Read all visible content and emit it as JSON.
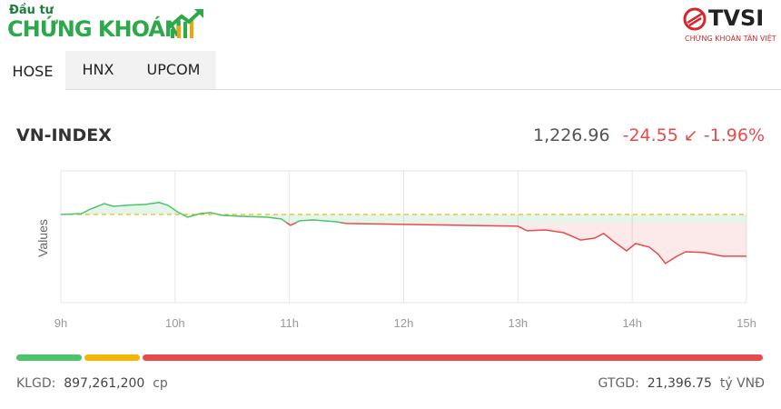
{
  "header": {
    "logo_top": "Đầu tư",
    "logo_main": "CHỨNG KHOÁN",
    "broker": "TVSI",
    "broker_tagline": "CHỨNG KHOÁN TÂN VIỆT"
  },
  "tabs": [
    "HOSE",
    "HNX",
    "UPCOM"
  ],
  "index": {
    "name": "VN-INDEX",
    "value": "1,226.96",
    "change": "-24.55",
    "change_pct": "-1.96%"
  },
  "chart_data": {
    "type": "line",
    "y_label": "Values",
    "x": [
      9.0,
      9.18,
      9.26,
      9.38,
      9.46,
      9.58,
      9.74,
      9.86,
      9.94,
      10.02,
      10.11,
      10.22,
      10.31,
      10.41,
      10.57,
      10.81,
      10.93,
      11.01,
      11.09,
      11.21,
      11.41,
      11.5,
      13.0,
      13.08,
      13.24,
      13.4,
      13.55,
      13.67,
      13.75,
      13.83,
      13.95,
      14.03,
      14.15,
      14.23,
      14.29,
      14.39,
      14.47,
      14.63,
      14.79,
      15.0
    ],
    "values": [
      1251.5,
      1252.0,
      1254.7,
      1257.9,
      1256.3,
      1256.9,
      1257.4,
      1258.5,
      1256.8,
      1253.1,
      1249.9,
      1252.0,
      1252.6,
      1251.0,
      1250.4,
      1249.9,
      1248.8,
      1245.1,
      1247.8,
      1248.3,
      1247.2,
      1246.2,
      1244.6,
      1241.9,
      1242.4,
      1240.8,
      1236.5,
      1237.6,
      1240.3,
      1236.0,
      1230.1,
      1234.4,
      1232.3,
      1228.0,
      1222.7,
      1226.9,
      1229.6,
      1229.1,
      1227.0,
      1226.96
    ],
    "reference": 1251.51,
    "up_color": "#4cc46b",
    "down_color": "#e84a4a",
    "reference_color": "#f0b000",
    "xlim": [
      9,
      15
    ],
    "ylim": [
      1199.7,
      1277.1
    ],
    "xticks": [
      {
        "value": 9,
        "label": "9h"
      },
      {
        "value": 10,
        "label": "10h"
      },
      {
        "value": 11,
        "label": "11h"
      },
      {
        "value": 12,
        "label": "12h"
      },
      {
        "value": 13,
        "label": "13h"
      },
      {
        "value": 14,
        "label": "14h"
      },
      {
        "value": 15,
        "label": "15h"
      }
    ],
    "grid": true
  },
  "footer": {
    "volume_label": "KLGD:",
    "volume_value": "897,261,200",
    "volume_unit": "cp",
    "value_label": "GTGD:",
    "value_value": "21,396.75",
    "value_unit": "tỷ VNĐ"
  }
}
